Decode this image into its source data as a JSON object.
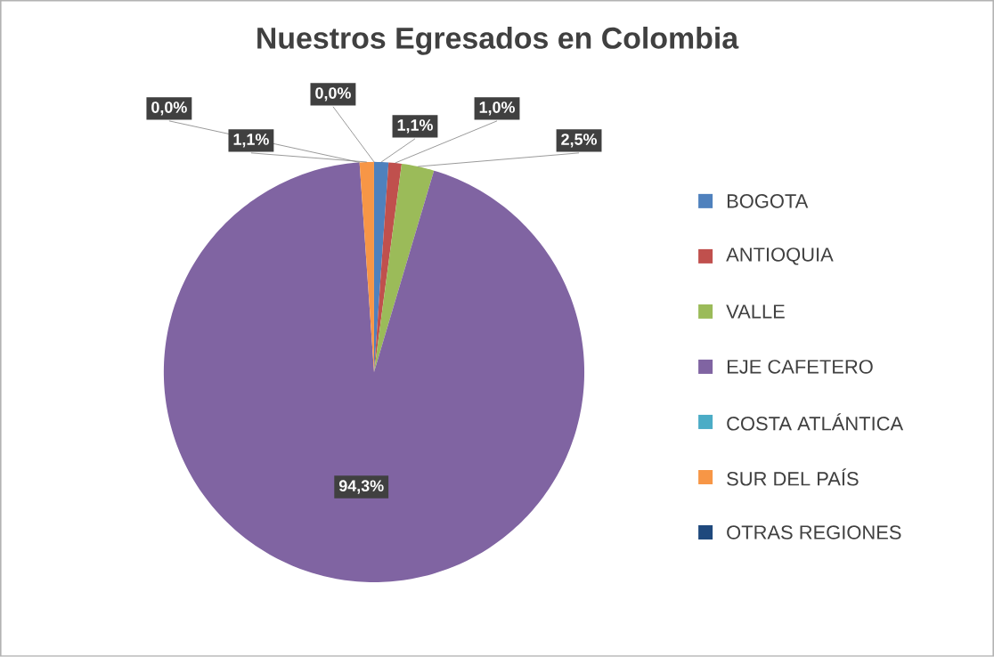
{
  "chart_data": {
    "type": "pie",
    "title": "Nuestros Egresados en Colombia",
    "categories": [
      "BOGOTA",
      "ANTIOQUIA",
      "VALLE",
      "EJE CAFETERO",
      "COSTA ATLÁNTICA",
      "SUR DEL PAÍS",
      "OTRAS REGIONES"
    ],
    "values": [
      1.1,
      1.0,
      2.5,
      94.3,
      0.0,
      1.1,
      0.0
    ],
    "value_labels": [
      "1,1%",
      "1,0%",
      "2,5%",
      "94,3%",
      "0,0%",
      "1,1%",
      "0,0%"
    ],
    "colors": [
      "#4f81bd",
      "#c0504d",
      "#9bbb59",
      "#8064a2",
      "#4bacc6",
      "#f79646",
      "#1f497d"
    ],
    "legend": "right"
  }
}
